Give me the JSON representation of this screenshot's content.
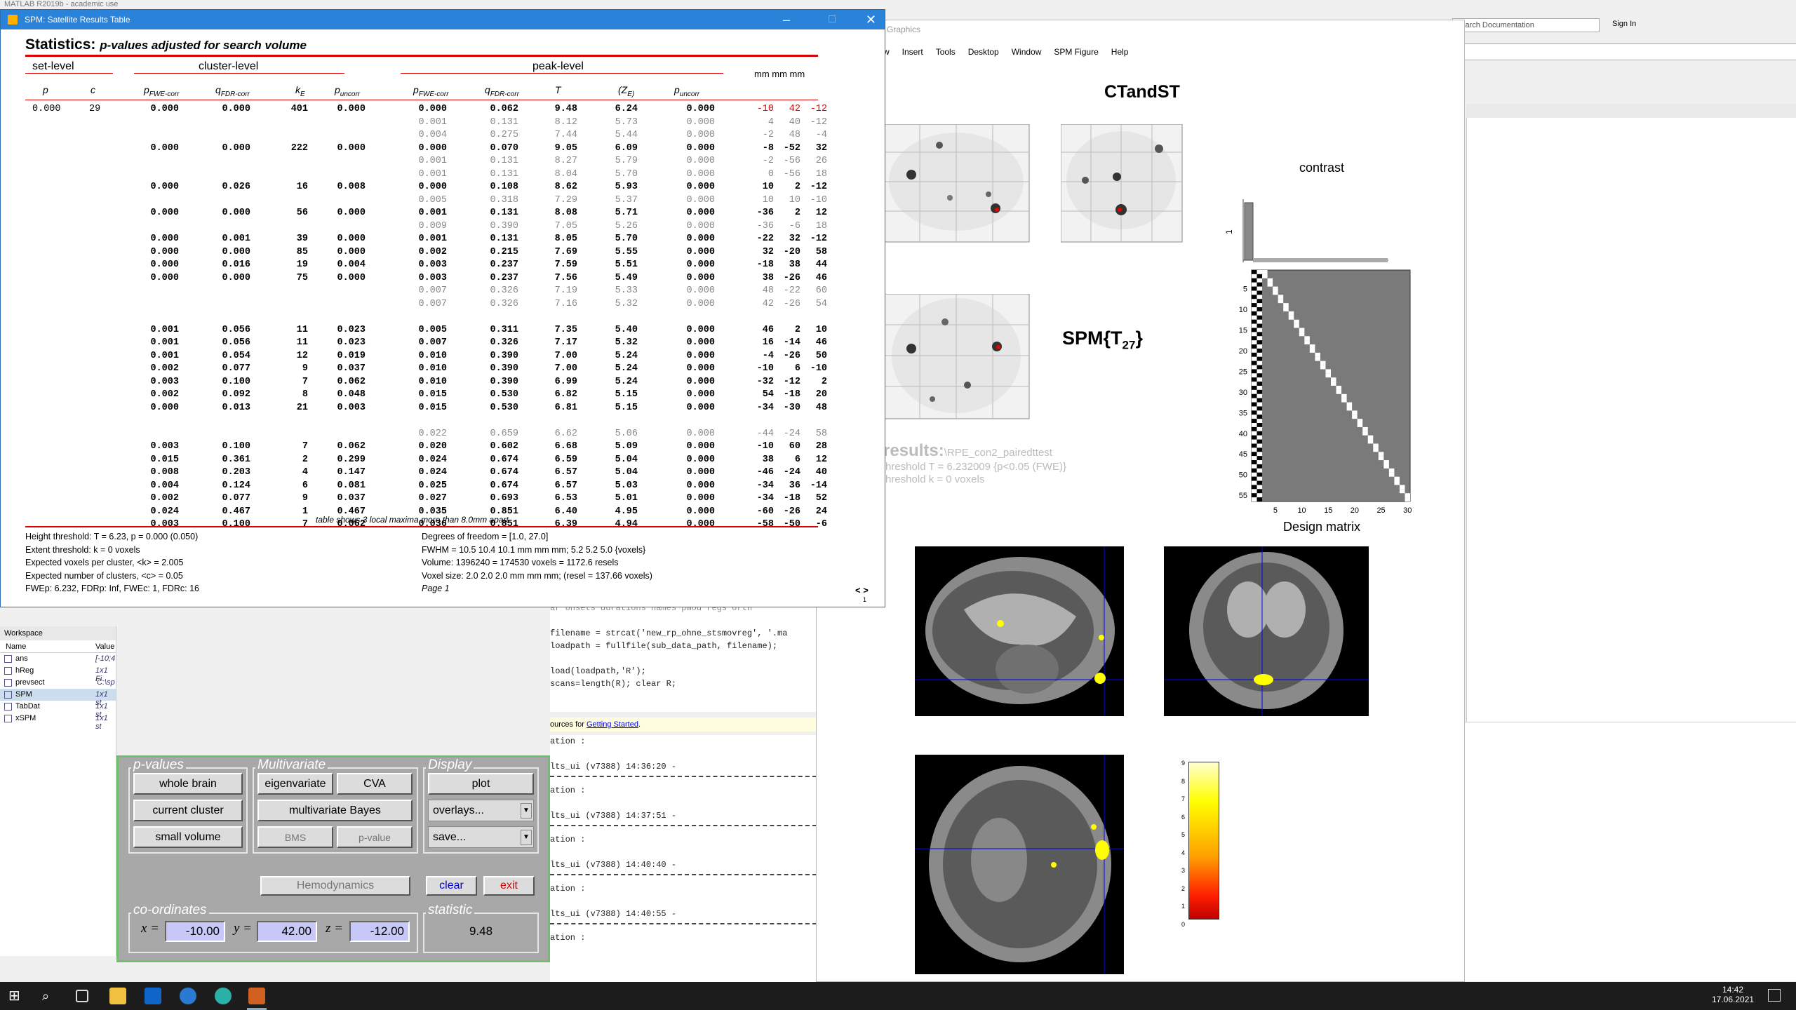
{
  "matlab": {
    "title": "MATLAB R2019b - academic use",
    "search_placeholder": "Search Documentation",
    "sign_in": "Sign In",
    "resources_text": "ources for",
    "getting_started": "Getting Started"
  },
  "table_window": {
    "title": "SPM: Satellite Results Table",
    "heading": "Statistics:",
    "subheading": "p-values adjusted for search volume",
    "set_level": "set-level",
    "cluster_level": "cluster-level",
    "peak_level": "peak-level",
    "mm_header": "mm mm mm",
    "col_headers": {
      "p": "p",
      "c": "c",
      "p_fwe": "pFWE-corr",
      "q_fdr": "qFDR-corr",
      "kE": "kE",
      "p_uncorr": "puncorr",
      "pk_fwe": "pFWE-corr",
      "pk_fdr": "qFDR-corr",
      "T": "T",
      "ZE": "(ZE)",
      "pk_uncorr": "puncorr"
    },
    "set_row": {
      "p": "0.000",
      "c": "29"
    },
    "rows": [
      {
        "cl": [
          "0.000",
          "0.000",
          "401",
          "0.000"
        ],
        "pk": [
          "0.000",
          "0.062",
          "9.48",
          "6.24",
          "0.000"
        ],
        "mm": [
          "-10",
          "42",
          "-12"
        ],
        "t": "cur"
      },
      {
        "cl": null,
        "pk": [
          "0.001",
          "0.131",
          "8.12",
          "5.73",
          "0.000"
        ],
        "mm": [
          "4",
          "40",
          "-12"
        ],
        "t": "sub"
      },
      {
        "cl": null,
        "pk": [
          "0.004",
          "0.275",
          "7.44",
          "5.44",
          "0.000"
        ],
        "mm": [
          "-2",
          "48",
          "-4"
        ],
        "t": "sub"
      },
      {
        "cl": [
          "0.000",
          "0.000",
          "222",
          "0.000"
        ],
        "pk": [
          "0.000",
          "0.070",
          "9.05",
          "6.09",
          "0.000"
        ],
        "mm": [
          "-8",
          "-52",
          "32"
        ],
        "t": "main"
      },
      {
        "cl": null,
        "pk": [
          "0.001",
          "0.131",
          "8.27",
          "5.79",
          "0.000"
        ],
        "mm": [
          "-2",
          "-56",
          "26"
        ],
        "t": "sub"
      },
      {
        "cl": null,
        "pk": [
          "0.001",
          "0.131",
          "8.04",
          "5.70",
          "0.000"
        ],
        "mm": [
          "0",
          "-56",
          "18"
        ],
        "t": "sub"
      },
      {
        "cl": [
          "0.000",
          "0.026",
          "16",
          "0.008"
        ],
        "pk": [
          "0.000",
          "0.108",
          "8.62",
          "5.93",
          "0.000"
        ],
        "mm": [
          "10",
          "2",
          "-12"
        ],
        "t": "main"
      },
      {
        "cl": null,
        "pk": [
          "0.005",
          "0.318",
          "7.29",
          "5.37",
          "0.000"
        ],
        "mm": [
          "10",
          "10",
          "-10"
        ],
        "t": "sub"
      },
      {
        "cl": [
          "0.000",
          "0.000",
          "56",
          "0.000"
        ],
        "pk": [
          "0.001",
          "0.131",
          "8.08",
          "5.71",
          "0.000"
        ],
        "mm": [
          "-36",
          "2",
          "12"
        ],
        "t": "main"
      },
      {
        "cl": null,
        "pk": [
          "0.009",
          "0.390",
          "7.05",
          "5.26",
          "0.000"
        ],
        "mm": [
          "-36",
          "-6",
          "18"
        ],
        "t": "sub"
      },
      {
        "cl": [
          "0.000",
          "0.001",
          "39",
          "0.000"
        ],
        "pk": [
          "0.001",
          "0.131",
          "8.05",
          "5.70",
          "0.000"
        ],
        "mm": [
          "-22",
          "32",
          "-12"
        ],
        "t": "main"
      },
      {
        "cl": [
          "0.000",
          "0.000",
          "85",
          "0.000"
        ],
        "pk": [
          "0.002",
          "0.215",
          "7.69",
          "5.55",
          "0.000"
        ],
        "mm": [
          "32",
          "-20",
          "58"
        ],
        "t": "main"
      },
      {
        "cl": [
          "0.000",
          "0.016",
          "19",
          "0.004"
        ],
        "pk": [
          "0.003",
          "0.237",
          "7.59",
          "5.51",
          "0.000"
        ],
        "mm": [
          "-18",
          "38",
          "44"
        ],
        "t": "main"
      },
      {
        "cl": [
          "0.000",
          "0.000",
          "75",
          "0.000"
        ],
        "pk": [
          "0.003",
          "0.237",
          "7.56",
          "5.49",
          "0.000"
        ],
        "mm": [
          "38",
          "-26",
          "46"
        ],
        "t": "main"
      },
      {
        "cl": null,
        "pk": [
          "0.007",
          "0.326",
          "7.19",
          "5.33",
          "0.000"
        ],
        "mm": [
          "48",
          "-22",
          "60"
        ],
        "t": "sub"
      },
      {
        "cl": null,
        "pk": [
          "0.007",
          "0.326",
          "7.16",
          "5.32",
          "0.000"
        ],
        "mm": [
          "42",
          "-26",
          "54"
        ],
        "t": "sub"
      },
      {
        "cl": [
          "0.001",
          "0.056",
          "11",
          "0.023"
        ],
        "pk": [
          "0.005",
          "0.311",
          "7.35",
          "5.40",
          "0.000"
        ],
        "mm": [
          "46",
          "2",
          "10"
        ],
        "t": "main"
      },
      {
        "cl": [
          "0.001",
          "0.056",
          "11",
          "0.023"
        ],
        "pk": [
          "0.007",
          "0.326",
          "7.17",
          "5.32",
          "0.000"
        ],
        "mm": [
          "16",
          "-14",
          "46"
        ],
        "t": "main"
      },
      {
        "cl": [
          "0.001",
          "0.054",
          "12",
          "0.019"
        ],
        "pk": [
          "0.010",
          "0.390",
          "7.00",
          "5.24",
          "0.000"
        ],
        "mm": [
          "-4",
          "-26",
          "50"
        ],
        "t": "main"
      },
      {
        "cl": [
          "0.002",
          "0.077",
          "9",
          "0.037"
        ],
        "pk": [
          "0.010",
          "0.390",
          "7.00",
          "5.24",
          "0.000"
        ],
        "mm": [
          "-10",
          "6",
          "-10"
        ],
        "t": "main"
      },
      {
        "cl": [
          "0.003",
          "0.100",
          "7",
          "0.062"
        ],
        "pk": [
          "0.010",
          "0.390",
          "6.99",
          "5.24",
          "0.000"
        ],
        "mm": [
          "-32",
          "-12",
          "2"
        ],
        "t": "main"
      },
      {
        "cl": [
          "0.002",
          "0.092",
          "8",
          "0.048"
        ],
        "pk": [
          "0.015",
          "0.530",
          "6.82",
          "5.15",
          "0.000"
        ],
        "mm": [
          "54",
          "-18",
          "20"
        ],
        "t": "main"
      },
      {
        "cl": [
          "0.000",
          "0.013",
          "21",
          "0.003"
        ],
        "pk": [
          "0.015",
          "0.530",
          "6.81",
          "5.15",
          "0.000"
        ],
        "mm": [
          "-34",
          "-30",
          "48"
        ],
        "t": "main"
      },
      {
        "cl": null,
        "pk": [
          "0.022",
          "0.659",
          "6.62",
          "5.06",
          "0.000"
        ],
        "mm": [
          "-44",
          "-24",
          "58"
        ],
        "t": "sub"
      },
      {
        "cl": [
          "0.003",
          "0.100",
          "7",
          "0.062"
        ],
        "pk": [
          "0.020",
          "0.602",
          "6.68",
          "5.09",
          "0.000"
        ],
        "mm": [
          "-10",
          "60",
          "28"
        ],
        "t": "main"
      },
      {
        "cl": [
          "0.015",
          "0.361",
          "2",
          "0.299"
        ],
        "pk": [
          "0.024",
          "0.674",
          "6.59",
          "5.04",
          "0.000"
        ],
        "mm": [
          "38",
          "6",
          "12"
        ],
        "t": "main"
      },
      {
        "cl": [
          "0.008",
          "0.203",
          "4",
          "0.147"
        ],
        "pk": [
          "0.024",
          "0.674",
          "6.57",
          "5.04",
          "0.000"
        ],
        "mm": [
          "-46",
          "-24",
          "40"
        ],
        "t": "main"
      },
      {
        "cl": [
          "0.004",
          "0.124",
          "6",
          "0.081"
        ],
        "pk": [
          "0.025",
          "0.674",
          "6.57",
          "5.03",
          "0.000"
        ],
        "mm": [
          "-34",
          "36",
          "-14"
        ],
        "t": "main"
      },
      {
        "cl": [
          "0.002",
          "0.077",
          "9",
          "0.037"
        ],
        "pk": [
          "0.027",
          "0.693",
          "6.53",
          "5.01",
          "0.000"
        ],
        "mm": [
          "-34",
          "-18",
          "52"
        ],
        "t": "main"
      },
      {
        "cl": [
          "0.024",
          "0.467",
          "1",
          "0.467"
        ],
        "pk": [
          "0.035",
          "0.851",
          "6.40",
          "4.95",
          "0.000"
        ],
        "mm": [
          "-60",
          "-26",
          "24"
        ],
        "t": "main"
      },
      {
        "cl": [
          "0.003",
          "0.100",
          "7",
          "0.062"
        ],
        "pk": [
          "0.036",
          "0.851",
          "6.39",
          "4.94",
          "0.000"
        ],
        "mm": [
          "-58",
          "-50",
          "-6"
        ],
        "t": "main"
      }
    ],
    "footnote": "table shows 3 local maxima more than 8.0mm apart",
    "foot_left": [
      "Height threshold: T = 6.23, p = 0.000 (0.050)",
      "Extent threshold: k = 0 voxels",
      "Expected voxels per cluster, <k> = 2.005",
      "Expected number of clusters, <c> = 0.05",
      "FWEp: 6.232, FDRp: Inf, FWEc: 1, FDRc: 16"
    ],
    "foot_right": [
      "Degrees of freedom = [1.0, 27.0]",
      "FWHM = 10.5 10.4 10.1 mm mm mm; 5.2 5.2 5.0 {voxels}",
      "Volume: 1396240 = 174530 voxels = 1172.6 resels",
      "Voxel size: 2.0 2.0 2.0 mm mm mm; (resel = 137.66 voxels)",
      "Page 1"
    ],
    "page_nav": "< >",
    "page_num": "1"
  },
  "graphics_window": {
    "title": "Graphics",
    "menu": [
      "w",
      "Insert",
      "Tools",
      "Desktop",
      "Window",
      "SPM Figure",
      "Help"
    ],
    "heading": "CTandST",
    "contrast_label": "contrast",
    "stat_label": "SPM{T",
    "stat_sub": "27",
    "stat_close": "}",
    "contrast_tick": "1",
    "results_text": "results:",
    "results_path": "\\RPE_con2_pairedttest",
    "threshold_line1": "hreshold T = 6.232009  {p<0.05 (FWE)}",
    "threshold_line2": "hreshold k = 0 voxels",
    "design_matrix_label": "Design matrix",
    "dm_yticks": [
      "5",
      "10",
      "15",
      "20",
      "25",
      "30",
      "35",
      "40",
      "45",
      "50",
      "55"
    ],
    "dm_xticks": [
      "5",
      "10",
      "15",
      "20",
      "25",
      "30"
    ],
    "colorbar_ticks": [
      "9",
      "8",
      "7",
      "6",
      "5",
      "4",
      "3",
      "2",
      "1",
      "0"
    ]
  },
  "results_panel": {
    "pvalues_title": "p-values",
    "multivariate_title": "Multivariate",
    "display_title": "Display",
    "whole_brain": "whole brain",
    "current_cluster": "current cluster",
    "small_volume": "small volume",
    "eigenvariate": "eigenvariate",
    "cva": "CVA",
    "multivariate_bayes": "multivariate Bayes",
    "bms": "BMS",
    "p_value": "p-value",
    "plot": "plot",
    "overlays": "overlays...",
    "save": "save...",
    "hemodynamics": "Hemodynamics",
    "clear": "clear",
    "exit": "exit",
    "coords_title": "co-ordinates",
    "statistic_title": "statistic",
    "x_label": "x =",
    "y_label": "y =",
    "z_label": "z =",
    "x_val": "-10.00",
    "y_val": "42.00",
    "z_val": "-12.00",
    "stat_val": "9.48"
  },
  "workspace": {
    "title": "Workspace",
    "col_name": "Name",
    "col_value": "Value",
    "items": [
      {
        "name": "ans",
        "value": "[-10;4"
      },
      {
        "name": "hReg",
        "value": "1x1 Fi"
      },
      {
        "name": "prevsect",
        "value": "'C:\\sp"
      },
      {
        "name": "SPM",
        "value": "1x1 st"
      },
      {
        "name": "TabDat",
        "value": "1x1 st"
      },
      {
        "name": "xSPM",
        "value": "1x1 st"
      }
    ]
  },
  "code_lines": [
    "ar onsets durations names pmod regs orth",
    "filename = strcat('new_rp_ohne_stsmovreg', '.ma",
    "loadpath = fullfile(sub_data_path, filename);",
    "load(loadpath,'R');",
    "scans=length(R); clear R;"
  ],
  "cmd_lines": [
    "ation                  :",
    "lts_ui (v7388)                        14:36:20 -",
    "ation                  :",
    "lts_ui (v7388)                        14:37:51 -",
    "ation                  :",
    "lts_ui (v7388)                        14:40:40 -",
    "ation                  :",
    "lts_ui (v7388)                        14:40:55 -",
    "ation                  :"
  ],
  "taskbar": {
    "time": "14:42",
    "date": "17.06.2021"
  }
}
